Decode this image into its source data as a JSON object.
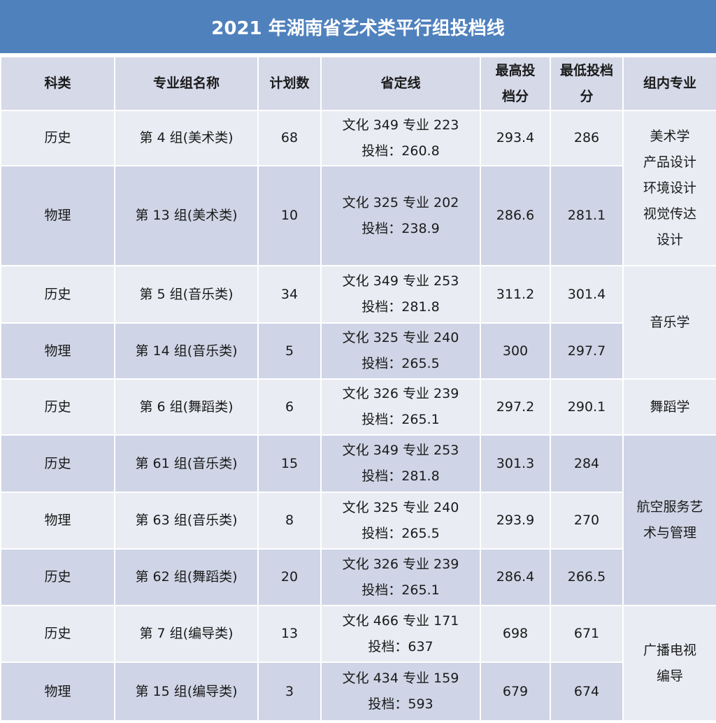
{
  "title": "2021 年湖南省艺术类平行组投档线",
  "headers": [
    "科类",
    "专业组名称",
    "计划数",
    "省定线",
    "最高投档分",
    "最低投档分",
    "组内专业"
  ],
  "rows": [
    {
      "subject": "历史",
      "group": "第 4 组(美术类)",
      "plan": "68",
      "line1": "文化 349  专业 223",
      "line2": "投档：260.8",
      "max": "293.4",
      "min": "286"
    },
    {
      "subject": "物理",
      "group": "第 13 组(美术类)",
      "plan": "10",
      "line1": "文化 325  专业 202",
      "line2": "投档：238.9",
      "max": "286.6",
      "min": "281.1"
    },
    {
      "subject": "历史",
      "group": "第 5 组(音乐类)",
      "plan": "34",
      "line1": "文化 349  专业 253",
      "line2": "投档：281.8",
      "max": "311.2",
      "min": "301.4"
    },
    {
      "subject": "物理",
      "group": "第 14 组(音乐类)",
      "plan": "5",
      "line1": "文化 325  专业 240",
      "line2": "投档：265.5",
      "max": "300",
      "min": "297.7"
    },
    {
      "subject": "历史",
      "group": "第 6 组(舞蹈类)",
      "plan": "6",
      "line1": "文化 326  专业 239",
      "line2": "投档：265.1",
      "max": "297.2",
      "min": "290.1"
    },
    {
      "subject": "历史",
      "group": "第 61 组(音乐类)",
      "plan": "15",
      "line1": "文化 349  专业 253",
      "line2": "投档：281.8",
      "max": "301.3",
      "min": "284"
    },
    {
      "subject": "物理",
      "group": "第 63 组(音乐类)",
      "plan": "8",
      "line1": "文化 325  专业 240",
      "line2": "投档：265.5",
      "max": "293.9",
      "min": "270"
    },
    {
      "subject": "历史",
      "group": "第 62 组(舞蹈类)",
      "plan": "20",
      "line1": "文化 326  专业 239",
      "line2": "投档：265.1",
      "max": "286.4",
      "min": "266.5"
    },
    {
      "subject": "历史",
      "group": "第 7 组(编导类)",
      "plan": "13",
      "line1": "文化 466  专业 171",
      "line2": "投档：637",
      "max": "698",
      "min": "671"
    },
    {
      "subject": "物理",
      "group": "第 15 组(编导类)",
      "plan": "3",
      "line1": "文化 434  专业 159",
      "line2": "投档：593",
      "max": "679",
      "min": "674"
    }
  ],
  "majors": [
    {
      "start": 0,
      "span": 2,
      "lines": [
        "美术学",
        "产品设计",
        "环境设计",
        "视觉传达",
        "设计"
      ]
    },
    {
      "start": 2,
      "span": 2,
      "lines": [
        "音乐学"
      ]
    },
    {
      "start": 4,
      "span": 1,
      "lines": [
        "舞蹈学"
      ]
    },
    {
      "start": 5,
      "span": 3,
      "lines": [
        "航空服务艺",
        "术与管理"
      ]
    },
    {
      "start": 8,
      "span": 2,
      "lines": [
        "广播电视",
        "编导"
      ]
    }
  ]
}
